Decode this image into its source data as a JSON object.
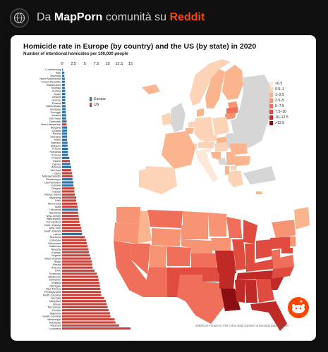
{
  "header": {
    "prefix": "Da",
    "community": "MapPorn",
    "middle": "comunità su",
    "site": "Reddit"
  },
  "chart_data": {
    "type": "bar",
    "orientation": "horizontal",
    "title": "Homicide rate in Europe (by country) and the US (by state) in 2020",
    "subtitle": "Number of intentional homicides per 100,000 people",
    "xlim": [
      0,
      15
    ],
    "xticks": [
      "0",
      "2.5",
      "5",
      "7.5",
      "10",
      "12.5",
      "15"
    ],
    "legend": [
      {
        "name": "Europe",
        "color": "#2f73a8"
      },
      {
        "name": "US",
        "color": "#c8423a"
      }
    ],
    "series": [
      {
        "name": "Europe",
        "points": [
          {
            "label": "Luxembourg",
            "value": 0.2
          },
          {
            "label": "Italy",
            "value": 0.5
          },
          {
            "label": "Slovenia",
            "value": 0.5
          },
          {
            "label": "North Macedonia",
            "value": 0.6
          },
          {
            "label": "Czech Republic",
            "value": 0.6
          },
          {
            "label": "Switzerland",
            "value": 0.6
          },
          {
            "label": "Norway",
            "value": 0.6
          },
          {
            "label": "Austria",
            "value": 0.7
          },
          {
            "label": "Spain",
            "value": 0.7
          },
          {
            "label": "Ireland",
            "value": 0.7
          },
          {
            "label": "Greece",
            "value": 0.7
          },
          {
            "label": "Poland",
            "value": 0.7
          },
          {
            "label": "Netherlands",
            "value": 0.8
          },
          {
            "label": "Hungary",
            "value": 0.8
          },
          {
            "label": "Portugal",
            "value": 0.8
          },
          {
            "label": "Iceland",
            "value": 0.9
          },
          {
            "label": "Germany",
            "value": 0.9
          },
          {
            "label": "Denmark",
            "value": 1.0
          },
          {
            "label": "Bulgaria",
            "value": 1.1
          },
          {
            "label": "Croatia",
            "value": 1.1
          },
          {
            "label": "Serbia",
            "value": 1.1
          },
          {
            "label": "Slovakia",
            "value": 1.1
          },
          {
            "label": "Malta",
            "value": 1.1
          },
          {
            "label": "Sweden",
            "value": 1.2
          },
          {
            "label": "Belgium",
            "value": 1.2
          },
          {
            "label": "France",
            "value": 1.3
          },
          {
            "label": "Romania",
            "value": 1.3
          },
          {
            "label": "Kosovo",
            "value": 1.3
          },
          {
            "label": "Finland",
            "value": 1.6
          },
          {
            "label": "Cyprus",
            "value": 1.8
          },
          {
            "label": "Albania",
            "value": 2.0
          },
          {
            "label": "Montenegro",
            "value": 2.3
          },
          {
            "label": "Liechtenstein",
            "value": 2.5
          },
          {
            "label": "Estonia",
            "value": 2.5
          },
          {
            "label": "Lithuania",
            "value": 3.5
          },
          {
            "label": "Latvia",
            "value": 4.4
          }
        ]
      },
      {
        "name": "US",
        "points": [
          {
            "label": "New Hampshire",
            "value": 1.0
          },
          {
            "label": "Maine",
            "value": 1.7
          },
          {
            "label": "Vermont",
            "value": 2.0
          },
          {
            "label": "Idaho",
            "value": 2.2
          },
          {
            "label": "Massachusetts",
            "value": 2.3
          },
          {
            "label": "Oregon",
            "value": 2.7
          },
          {
            "label": "Hawaii",
            "value": 2.7
          },
          {
            "label": "Rhode Island",
            "value": 2.8
          },
          {
            "label": "Wyoming",
            "value": 3.1
          },
          {
            "label": "Utah",
            "value": 3.1
          },
          {
            "label": "Minnesota",
            "value": 3.3
          },
          {
            "label": "Iowa",
            "value": 3.4
          },
          {
            "label": "Nebraska",
            "value": 3.5
          },
          {
            "label": "New Jersey",
            "value": 3.6
          },
          {
            "label": "Washington",
            "value": 3.7
          },
          {
            "label": "Connecticut",
            "value": 3.8
          },
          {
            "label": "North Dakota",
            "value": 4.0
          },
          {
            "label": "New York",
            "value": 4.2
          },
          {
            "label": "South Dakota",
            "value": 4.3
          },
          {
            "label": "Montana",
            "value": 5.0
          },
          {
            "label": "Colorado",
            "value": 5.3
          },
          {
            "label": "Wisconsin",
            "value": 5.4
          },
          {
            "label": "California",
            "value": 5.6
          },
          {
            "label": "Nevada",
            "value": 5.8
          },
          {
            "label": "Kansas",
            "value": 5.9
          },
          {
            "label": "Virginia",
            "value": 6.1
          },
          {
            "label": "West Virginia",
            "value": 6.3
          },
          {
            "label": "Texas",
            "value": 6.5
          },
          {
            "label": "Alaska",
            "value": 6.6
          },
          {
            "label": "Arizona",
            "value": 6.7
          },
          {
            "label": "Ohio",
            "value": 7.1
          },
          {
            "label": "Kentucky",
            "value": 7.6
          },
          {
            "label": "Oklahoma",
            "value": 7.9
          },
          {
            "label": "Delaware",
            "value": 8.0
          },
          {
            "label": "Indiana",
            "value": 8.2
          },
          {
            "label": "Michigan",
            "value": 8.3
          },
          {
            "label": "New Mexico",
            "value": 8.4
          },
          {
            "label": "Pennsylvania",
            "value": 8.5
          },
          {
            "label": "North Carolina",
            "value": 8.6
          },
          {
            "label": "Georgia",
            "value": 9.2
          },
          {
            "label": "Maryland",
            "value": 9.6
          },
          {
            "label": "Illinois",
            "value": 9.8
          },
          {
            "label": "Tennessee",
            "value": 10.0
          },
          {
            "label": "Florida",
            "value": 10.2
          },
          {
            "label": "Alabama",
            "value": 10.5
          },
          {
            "label": "South Carolina",
            "value": 10.6
          },
          {
            "label": "Mississippi",
            "value": 11.5
          },
          {
            "label": "Arkansas",
            "value": 11.7
          },
          {
            "label": "Missouri",
            "value": 12.5
          },
          {
            "label": "Louisiana",
            "value": 15.0
          }
        ]
      }
    ],
    "order": [
      "Luxembourg",
      "Italy",
      "Slovenia",
      "North Macedonia",
      "Czech Republic",
      "Switzerland",
      "Norway",
      "Austria",
      "Spain",
      "Ireland",
      "Greece",
      "Poland",
      "Netherlands",
      "Hungary",
      "Portugal",
      "Iceland",
      "Germany",
      "Denmark",
      "New Hampshire",
      "Bulgaria",
      "Croatia",
      "Serbia",
      "Slovakia",
      "Malta",
      "Sweden",
      "Belgium",
      "France",
      "Romania",
      "Kosovo",
      "Finland",
      "Maine",
      "Cyprus",
      "Albania",
      "Vermont",
      "Idaho",
      "Massachusetts",
      "Montenegro",
      "Liechtenstein",
      "Estonia",
      "Oregon",
      "Hawaii",
      "Rhode Island",
      "Wyoming",
      "Utah",
      "Minnesota",
      "Iowa",
      "Lithuania",
      "Nebraska",
      "New Jersey",
      "Washington",
      "Connecticut",
      "North Dakota",
      "New York",
      "South Dakota",
      "Latvia",
      "Montana",
      "Colorado",
      "Wisconsin",
      "California",
      "Nevada",
      "Kansas",
      "Virginia",
      "West Virginia",
      "Texas",
      "Alaska",
      "Arizona",
      "Ohio",
      "Kentucky",
      "Oklahoma",
      "Delaware",
      "Indiana",
      "Michigan",
      "New Mexico",
      "Pennsylvania",
      "North Carolina",
      "Georgia",
      "Maryland",
      "Illinois",
      "Tennessee",
      "Florida",
      "Alabama",
      "South Carolina",
      "Mississippi",
      "Arkansas",
      "Missouri",
      "Louisiana"
    ]
  },
  "map_legend": [
    {
      "label": "<0.5",
      "color": "#fde9d9"
    },
    {
      "label": "0.5–1",
      "color": "#fcd3b6"
    },
    {
      "label": "1–2.5",
      "color": "#fbb58e"
    },
    {
      "label": "2.5–5",
      "color": "#f79473"
    },
    {
      "label": "5–7.5",
      "color": "#f06f5a"
    },
    {
      "label": "7.5–10",
      "color": "#e04c3f"
    },
    {
      "label": "10–12.5",
      "color": "#bf2a26"
    },
    {
      "label": ">12.5",
      "color": "#8a0f13"
    }
  ],
  "colors": {
    "no_data": "#d6d6d6",
    "europe_bar": "#2f73a8",
    "us_bar": "#c8423a"
  },
  "footer": "SeleRuck • Sources: FBI Crime Data Explorer & Eurostat Data Browser"
}
